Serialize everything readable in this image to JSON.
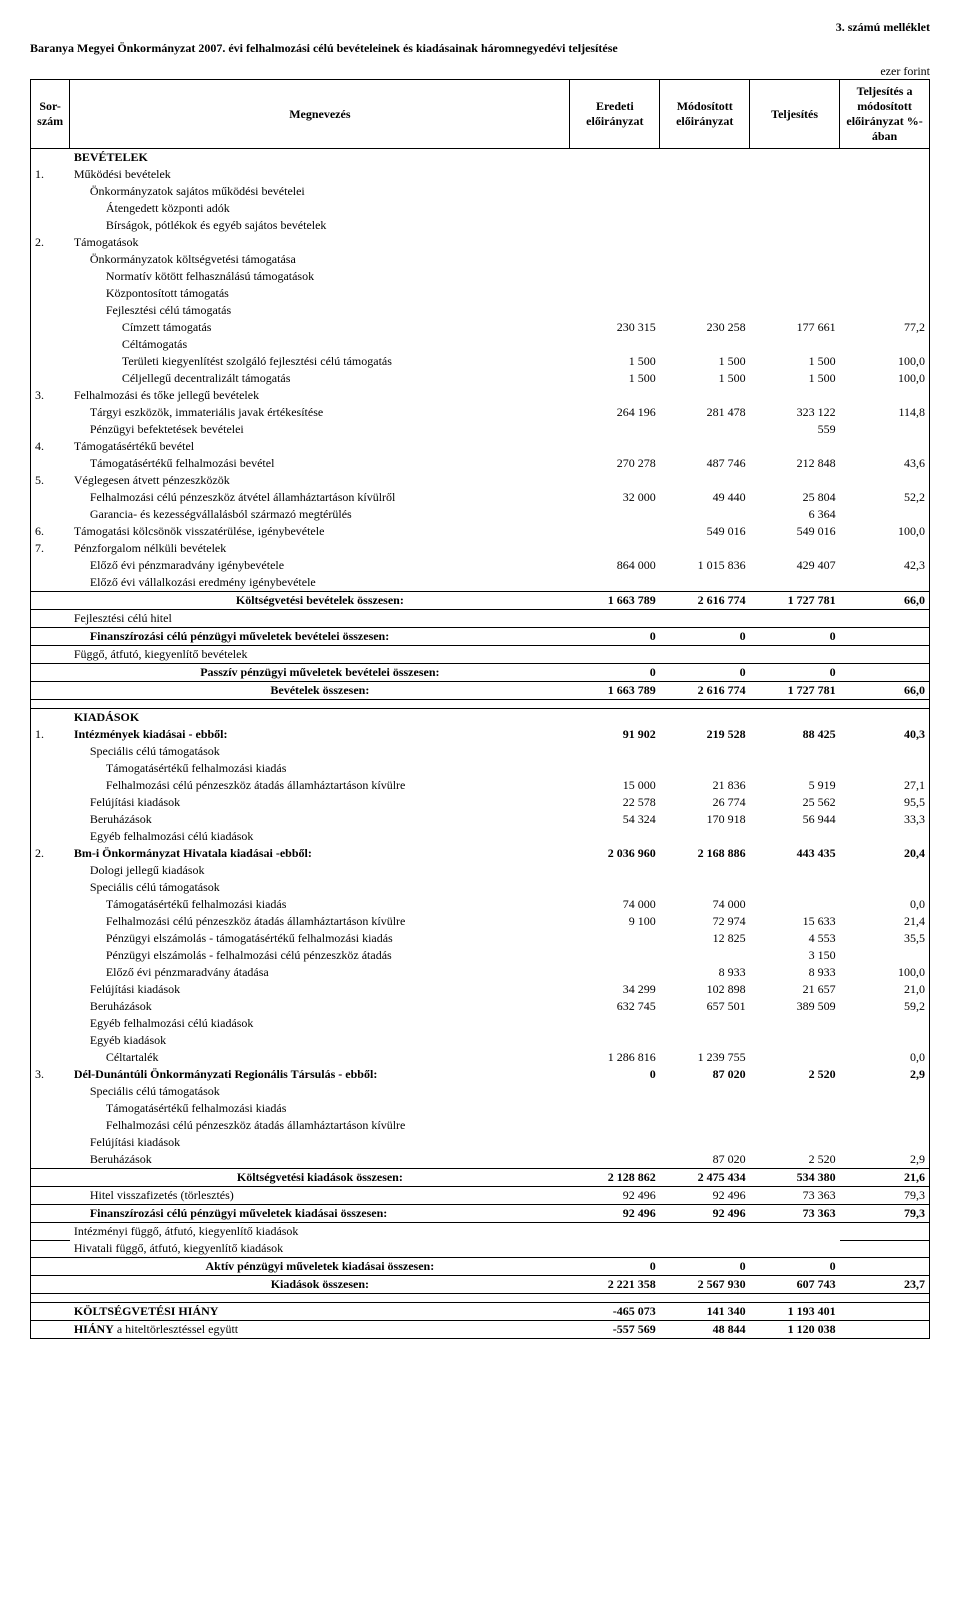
{
  "header": {
    "attachment": "3. számú melléklet",
    "title": "Baranya Megyei Önkormányzat 2007. évi felhalmozási célú bevételeinek és kiadásainak háromnegyedévi teljesítése",
    "unit": "ezer forint"
  },
  "columns": {
    "sorszam": "Sor-szám",
    "megnevezes": "Megnevezés",
    "eredeti": "Eredeti előirányzat",
    "modositott": "Módosított előirányzat",
    "teljesites": "Teljesítés",
    "pct": "Teljesítés a módosított előirányzat %-ában"
  },
  "bevetelek_heading": "BEVÉTELEK",
  "bevetelek": [
    {
      "n": "1.",
      "label": "Működési bevételek",
      "indent": 0,
      "bold": false
    },
    {
      "label": "Önkormányzatok sajátos működési bevételei",
      "indent": 1
    },
    {
      "label": "Átengedett központi adók",
      "indent": 2
    },
    {
      "label": "Bírságok, pótlékok és egyéb sajátos bevételek",
      "indent": 2
    },
    {
      "n": "2.",
      "label": "Támogatások",
      "indent": 0
    },
    {
      "label": "Önkormányzatok költségvetési támogatása",
      "indent": 1
    },
    {
      "label": "Normatív kötött felhasználású támogatások",
      "indent": 2
    },
    {
      "label": "Központosított támogatás",
      "indent": 2
    },
    {
      "label": "Fejlesztési célú támogatás",
      "indent": 2
    },
    {
      "label": "Címzett támogatás",
      "indent": 3,
      "v": [
        "230 315",
        "230 258",
        "177 661",
        "77,2"
      ]
    },
    {
      "label": "Céltámogatás",
      "indent": 3
    },
    {
      "label": "Területi kiegyenlítést szolgáló fejlesztési célú támogatás",
      "indent": 3,
      "v": [
        "1 500",
        "1 500",
        "1 500",
        "100,0"
      ]
    },
    {
      "label": "Céljellegű decentralizált támogatás",
      "indent": 3,
      "v": [
        "1 500",
        "1 500",
        "1 500",
        "100,0"
      ]
    },
    {
      "n": "3.",
      "label": "Felhalmozási és tőke jellegű bevételek",
      "indent": 0
    },
    {
      "label": "Tárgyi eszközök, immateriális javak értékesítése",
      "indent": 1,
      "v": [
        "264 196",
        "281 478",
        "323 122",
        "114,8"
      ]
    },
    {
      "label": "Pénzügyi befektetések bevételei",
      "indent": 1,
      "v": [
        "",
        "",
        "559",
        ""
      ]
    },
    {
      "n": "4.",
      "label": "Támogatásértékű bevétel",
      "indent": 0
    },
    {
      "label": "Támogatásértékű felhalmozási bevétel",
      "indent": 1,
      "v": [
        "270 278",
        "487 746",
        "212 848",
        "43,6"
      ]
    },
    {
      "n": "5.",
      "label": "Véglegesen átvett pénzeszközök",
      "indent": 0
    },
    {
      "label": "Felhalmozási célú pénzeszköz átvétel államháztartáson kívülről",
      "indent": 1,
      "v": [
        "32 000",
        "49 440",
        "25 804",
        "52,2"
      ]
    },
    {
      "label": "Garancia- és kezességvállalásból származó megtérülés",
      "indent": 1,
      "v": [
        "",
        "",
        "6 364",
        ""
      ]
    },
    {
      "n": "6.",
      "label": "Támogatási kölcsönök visszatérülése, igénybevétele",
      "indent": 0,
      "v": [
        "",
        "549 016",
        "549 016",
        "100,0"
      ]
    },
    {
      "n": "7.",
      "label": "Pénzforgalom nélküli bevételek",
      "indent": 0
    },
    {
      "label": "Előző évi pénzmaradvány igénybevétele",
      "indent": 1,
      "v": [
        "864 000",
        "1 015 836",
        "429 407",
        "42,3"
      ]
    },
    {
      "label": "Előző évi vállalkozási eredmény igénybevétele",
      "indent": 1
    }
  ],
  "bevetelek_summaries": [
    {
      "label": "Költségvetési bevételek összesen:",
      "v": [
        "1 663 789",
        "2 616 774",
        "1 727 781",
        "66,0"
      ],
      "bold": true,
      "center": true
    },
    {
      "label": "Fejlesztési célú hitel",
      "v": [
        "",
        "",
        "",
        ""
      ],
      "bold": false
    },
    {
      "label": "Finanszírozási célú pénzügyi műveletek bevételei összesen:",
      "v": [
        "0",
        "0",
        "0",
        ""
      ],
      "bold": true,
      "center": false,
      "indent": 1
    },
    {
      "label": "Függő, átfutó, kiegyenlítő bevételek",
      "v": [
        "",
        "",
        "",
        ""
      ],
      "bold": false
    },
    {
      "label": "Passzív pénzügyi műveletek bevételei összesen:",
      "v": [
        "0",
        "0",
        "0",
        ""
      ],
      "bold": true,
      "center": true
    },
    {
      "label": "Bevételek összesen:",
      "v": [
        "1 663 789",
        "2 616 774",
        "1 727 781",
        "66,0"
      ],
      "bold": true,
      "center": true
    }
  ],
  "kiadasok_heading": "KIADÁSOK",
  "kiadasok": [
    {
      "n": "1.",
      "label": "Intézmények kiadásai - ebből:",
      "indent": 0,
      "bold": true,
      "v": [
        "91 902",
        "219 528",
        "88 425",
        "40,3"
      ]
    },
    {
      "label": "Speciális célú támogatások",
      "indent": 1
    },
    {
      "label": "Támogatásértékű felhalmozási kiadás",
      "indent": 2
    },
    {
      "label": "Felhalmozási célú pénzeszköz átadás államháztartáson kívülre",
      "indent": 2,
      "v": [
        "15 000",
        "21 836",
        "5 919",
        "27,1"
      ]
    },
    {
      "label": "Felújítási kiadások",
      "indent": 1,
      "v": [
        "22 578",
        "26 774",
        "25 562",
        "95,5"
      ]
    },
    {
      "label": "Beruházások",
      "indent": 1,
      "v": [
        "54 324",
        "170 918",
        "56 944",
        "33,3"
      ]
    },
    {
      "label": "Egyéb felhalmozási célú kiadások",
      "indent": 1
    },
    {
      "n": "2.",
      "label": "Bm-i Önkormányzat Hivatala kiadásai -ebből:",
      "indent": 0,
      "bold": true,
      "v": [
        "2 036 960",
        "2 168 886",
        "443 435",
        "20,4"
      ]
    },
    {
      "label": "Dologi jellegű kiadások",
      "indent": 1
    },
    {
      "label": "Speciális célú támogatások",
      "indent": 1
    },
    {
      "label": "Támogatásértékű felhalmozási kiadás",
      "indent": 2,
      "v": [
        "74 000",
        "74 000",
        "",
        "0,0"
      ]
    },
    {
      "label": "Felhalmozási célú pénzeszköz átadás államháztartáson kívülre",
      "indent": 2,
      "v": [
        "9 100",
        "72 974",
        "15 633",
        "21,4"
      ]
    },
    {
      "label": "Pénzügyi elszámolás - támogatásértékű felhalmozási kiadás",
      "indent": 2,
      "v": [
        "",
        "12 825",
        "4 553",
        "35,5"
      ]
    },
    {
      "label": "Pénzügyi elszámolás - felhalmozási célú pénzeszköz átadás",
      "indent": 2,
      "v": [
        "",
        "",
        "3 150",
        ""
      ]
    },
    {
      "label": "Előző évi pénzmaradvány átadása",
      "indent": 2,
      "v": [
        "",
        "8 933",
        "8 933",
        "100,0"
      ]
    },
    {
      "label": "Felújítási kiadások",
      "indent": 1,
      "v": [
        "34 299",
        "102 898",
        "21 657",
        "21,0"
      ]
    },
    {
      "label": "Beruházások",
      "indent": 1,
      "v": [
        "632 745",
        "657 501",
        "389 509",
        "59,2"
      ]
    },
    {
      "label": "Egyéb felhalmozási célú kiadások",
      "indent": 1
    },
    {
      "label": "Egyéb kiadások",
      "indent": 1
    },
    {
      "label": "Céltartalék",
      "indent": 2,
      "v": [
        "1 286 816",
        "1 239 755",
        "",
        "0,0"
      ]
    },
    {
      "n": "3.",
      "label": "Dél-Dunántúli Önkormányzati Regionális Társulás - ebből:",
      "indent": 0,
      "bold": true,
      "v": [
        "0",
        "87 020",
        "2 520",
        "2,9"
      ]
    },
    {
      "label": "Speciális célú támogatások",
      "indent": 1
    },
    {
      "label": "Támogatásértékű felhalmozási kiadás",
      "indent": 2
    },
    {
      "label": "Felhalmozási célú pénzeszköz átadás államháztartáson kívülre",
      "indent": 2
    },
    {
      "label": "Felújítási kiadások",
      "indent": 1
    },
    {
      "label": "Beruházások",
      "indent": 1,
      "v": [
        "",
        "87 020",
        "2 520",
        "2,9"
      ]
    }
  ],
  "kiadasok_summaries": [
    {
      "label": "Költségvetési kiadások összesen:",
      "v": [
        "2 128 862",
        "2 475 434",
        "534 380",
        "21,6"
      ],
      "bold": true,
      "center": true
    },
    {
      "label": "Hitel visszafizetés (törlesztés)",
      "v": [
        "92 496",
        "92 496",
        "73 363",
        "79,3"
      ],
      "bold": false,
      "indent": 1
    },
    {
      "label": "Finanszírozási célú pénzügyi műveletek kiadásai összesen:",
      "v": [
        "92 496",
        "92 496",
        "73 363",
        "79,3"
      ],
      "bold": true,
      "indent": 1
    },
    {
      "label": "Intézményi függő, átfutó, kiegyenlítő kiadások",
      "v": [
        "",
        "",
        "",
        ""
      ],
      "bold": false
    },
    {
      "label": "Hivatali függő, átfutó, kiegyenlítő kiadások",
      "v": [
        "",
        "",
        "",
        ""
      ],
      "bold": false
    },
    {
      "label": "Aktív pénzügyi műveletek kiadásai összesen:",
      "v": [
        "0",
        "0",
        "0",
        ""
      ],
      "bold": true,
      "center": true
    },
    {
      "label": "Kiadások összesen:",
      "v": [
        "2 221 358",
        "2 567 930",
        "607 743",
        "23,7"
      ],
      "bold": true,
      "center": true
    }
  ],
  "deficit": [
    {
      "label": "KÖLTSÉGVETÉSI HIÁNY",
      "v": [
        "-465 073",
        "141 340",
        "1 193 401",
        ""
      ],
      "bold": true
    },
    {
      "label": "HIÁNY a hiteltörlesztéssel együtt",
      "indent": 0,
      "v": [
        "-557 569",
        "48 844",
        "1 120 038",
        ""
      ],
      "mixed": true
    }
  ]
}
